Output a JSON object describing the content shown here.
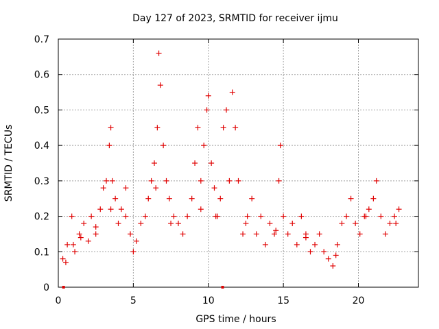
{
  "chart_data": {
    "type": "scatter",
    "title": "Day 127 of 2023, SRMTID for receiver ijmu",
    "xlabel": "GPS time / hours",
    "ylabel": "SRMTID / TECUs",
    "xlim": [
      0,
      24
    ],
    "ylim": [
      0,
      0.7
    ],
    "x_ticks": [
      0,
      5,
      10,
      15,
      20
    ],
    "x_tick_labels": [
      "0",
      "5",
      "10",
      "15",
      "20"
    ],
    "y_ticks": [
      0,
      0.1,
      0.2,
      0.3,
      0.4,
      0.5,
      0.6,
      0.7
    ],
    "y_tick_labels": [
      "0",
      "0.1",
      "0.2",
      "0.3",
      "0.4",
      "0.5",
      "0.6",
      "0.7"
    ],
    "grid": true,
    "marker": "plus",
    "color": "#e00000",
    "series": [
      {
        "name": "SRMTID",
        "x": [
          0.3,
          0.6,
          0.9,
          1.1,
          1.4,
          1.7,
          2.0,
          2.2,
          2.5,
          2.8,
          3.0,
          3.2,
          3.4,
          3.5,
          3.6,
          3.8,
          4.0,
          4.2,
          4.5,
          4.8,
          5.0,
          5.2,
          5.5,
          5.8,
          6.0,
          6.2,
          6.4,
          6.6,
          6.7,
          6.8,
          7.0,
          7.2,
          7.4,
          7.7,
          8.0,
          8.3,
          8.6,
          8.9,
          9.1,
          9.3,
          9.5,
          9.7,
          9.9,
          10.0,
          10.2,
          10.4,
          10.6,
          10.8,
          11.0,
          11.2,
          11.4,
          11.6,
          11.8,
          12.0,
          12.3,
          12.6,
          12.9,
          13.2,
          13.5,
          13.8,
          14.1,
          14.4,
          14.7,
          14.8,
          15.0,
          15.3,
          15.6,
          15.9,
          16.2,
          16.5,
          16.8,
          17.1,
          17.4,
          17.7,
          18.0,
          18.3,
          18.6,
          18.9,
          19.2,
          19.5,
          19.8,
          20.1,
          20.4,
          20.7,
          21.0,
          21.2,
          21.5,
          21.8,
          22.1,
          22.4,
          22.7,
          0.5,
          1.0,
          1.5,
          2.5,
          3.5,
          4.5,
          6.5,
          7.5,
          9.5,
          10.5,
          12.5,
          14.5,
          16.5,
          18.5,
          20.5,
          22.5
        ],
        "y": [
          0.08,
          0.12,
          0.2,
          0.1,
          0.15,
          0.18,
          0.13,
          0.2,
          0.15,
          0.22,
          0.28,
          0.3,
          0.4,
          0.45,
          0.3,
          0.25,
          0.18,
          0.22,
          0.2,
          0.15,
          0.1,
          0.13,
          0.18,
          0.2,
          0.25,
          0.3,
          0.35,
          0.45,
          0.66,
          0.57,
          0.4,
          0.3,
          0.25,
          0.2,
          0.18,
          0.15,
          0.2,
          0.25,
          0.35,
          0.45,
          0.3,
          0.4,
          0.5,
          0.54,
          0.35,
          0.28,
          0.2,
          0.25,
          0.45,
          0.5,
          0.3,
          0.55,
          0.45,
          0.3,
          0.15,
          0.2,
          0.25,
          0.15,
          0.2,
          0.12,
          0.18,
          0.15,
          0.3,
          0.4,
          0.2,
          0.15,
          0.18,
          0.12,
          0.2,
          0.15,
          0.1,
          0.12,
          0.15,
          0.1,
          0.08,
          0.06,
          0.12,
          0.18,
          0.2,
          0.25,
          0.18,
          0.15,
          0.2,
          0.22,
          0.25,
          0.3,
          0.2,
          0.15,
          0.18,
          0.2,
          0.22,
          0.07,
          0.12,
          0.14,
          0.17,
          0.22,
          0.28,
          0.28,
          0.18,
          0.22,
          0.2,
          0.18,
          0.16,
          0.14,
          0.09,
          0.2,
          0.18
        ],
        "extra_points": [
          {
            "x": 0.35,
            "y": 0.0
          },
          {
            "x": 10.95,
            "y": 0.0
          }
        ]
      }
    ]
  }
}
